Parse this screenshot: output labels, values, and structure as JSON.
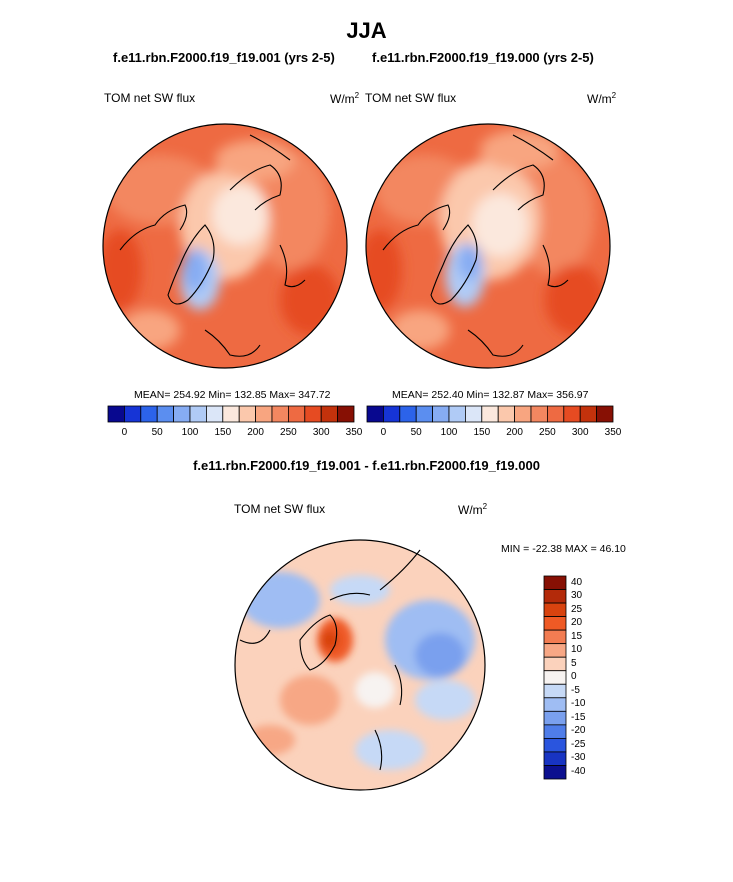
{
  "figure": {
    "title": "JJA",
    "panel_a": {
      "case_title": "f.e11.rbn.F2000.f19_f19.001 (yrs 2-5)",
      "variable": "TOM net SW flux",
      "units_base": "W/m",
      "units_exp": "2",
      "stats": "MEAN= 254.92  Min= 132.85  Max= 347.72"
    },
    "panel_b": {
      "case_title": "f.e11.rbn.F2000.f19_f19.000 (yrs 2-5)",
      "variable": "TOM net SW flux",
      "units_base": "W/m",
      "units_exp": "2",
      "stats": "MEAN= 252.40  Min= 132.87  Max= 356.97"
    },
    "diff_title": "f.e11.rbn.F2000.f19_f19.001 - f.e11.rbn.F2000.f19_f19.000",
    "panel_diff": {
      "variable": "TOM net SW flux",
      "units_base": "W/m",
      "units_exp": "2",
      "minmax": "MIN = -22.38 MAX =  46.10"
    }
  },
  "chart_data": [
    {
      "type": "heatmap",
      "projection": "polar-stereographic-north",
      "title": "TOM net SW flux",
      "case": "f.e11.rbn.F2000.f19_f19.001 (yrs 2-5)",
      "units": "W/m2",
      "mean": 254.92,
      "min": 132.85,
      "max": 347.72,
      "colorbar_ticks": [
        "0",
        "50",
        "100",
        "150",
        "200",
        "250",
        "300",
        "350"
      ],
      "colorbar_levels": [
        0,
        25,
        50,
        75,
        100,
        125,
        150,
        175,
        200,
        225,
        250,
        275,
        300,
        325,
        350
      ]
    },
    {
      "type": "heatmap",
      "projection": "polar-stereographic-north",
      "title": "TOM net SW flux",
      "case": "f.e11.rbn.F2000.f19_f19.000 (yrs 2-5)",
      "units": "W/m2",
      "mean": 252.4,
      "min": 132.87,
      "max": 356.97,
      "colorbar_ticks": [
        "0",
        "50",
        "100",
        "150",
        "200",
        "250",
        "300",
        "350"
      ],
      "colorbar_levels": [
        0,
        25,
        50,
        75,
        100,
        125,
        150,
        175,
        200,
        225,
        250,
        275,
        300,
        325,
        350
      ]
    },
    {
      "type": "heatmap",
      "projection": "polar-stereographic-north",
      "title": "TOM net SW flux",
      "case": "f.e11.rbn.F2000.f19_f19.001 - f.e11.rbn.F2000.f19_f19.000",
      "units": "W/m2",
      "min": -22.38,
      "max": 46.1,
      "colorbar_ticks": [
        "40",
        "30",
        "25",
        "20",
        "15",
        "10",
        "5",
        "0",
        "-5",
        "-10",
        "-15",
        "-20",
        "-25",
        "-30",
        "-40"
      ]
    }
  ],
  "colors": {
    "seq_scale": [
      "#08088f",
      "#1634d6",
      "#2c63ea",
      "#5b8ef0",
      "#86acf3",
      "#b0cbf6",
      "#dbe6f8",
      "#fbe8dd",
      "#fbc8ac",
      "#f8a580",
      "#f38760",
      "#ee6a42",
      "#e64b22",
      "#c3320c",
      "#871004"
    ],
    "diff_scale": [
      "#871004",
      "#b32a0a",
      "#d8430f",
      "#ef5a25",
      "#f27c52",
      "#f7a785",
      "#fbd2bc",
      "#f7f3f1",
      "#c6d9f6",
      "#9fbdf3",
      "#7aa0ee",
      "#4f7de9",
      "#2a55de",
      "#1834c2",
      "#0c108f"
    ],
    "land_outline": "#000000"
  }
}
